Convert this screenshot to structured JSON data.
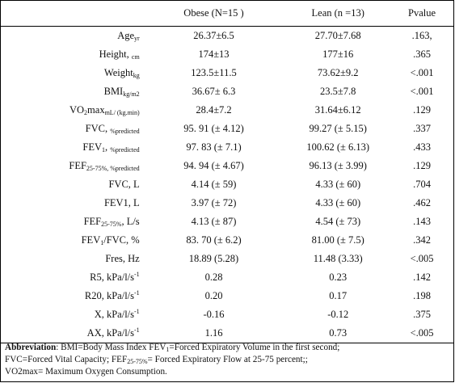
{
  "table": {
    "headers": [
      "",
      "Obese (N=15 )",
      "Lean (n =13)",
      "Pvalue"
    ],
    "rows": [
      {
        "label": {
          "main": "Age",
          "sub": "yr"
        },
        "obese": "26.37±6.5",
        "lean": "27.70±7.68",
        "p": ".163,"
      },
      {
        "label": {
          "main": "Height, ",
          "sub": "cm"
        },
        "obese": "174±13",
        "lean": "177±16",
        "p": ".365"
      },
      {
        "label": {
          "main": "Weight",
          "sub": "kg"
        },
        "obese": "123.5±11.5",
        "lean": "73.62±9.2",
        "p": "<.001"
      },
      {
        "label": {
          "main": "BMI",
          "sub": "kg/m2"
        },
        "obese": "36.67± 6.3",
        "lean": "23.5±7.8",
        "p": "<.001"
      },
      {
        "label": {
          "pre": "VO",
          "sub1": "2",
          "main": "max",
          "sub": "mL/ (kg.min)"
        },
        "obese": "28.4±7.2",
        "lean": "31.64±6.12",
        "p": ".129"
      },
      {
        "label": {
          "main": "FVC, ",
          "sub": "%predicted"
        },
        "obese": "95. 91 (± 4.12)",
        "lean": "99.27 (± 5.15)",
        "p": ".337"
      },
      {
        "label": {
          "pre": "FEV",
          "sub1": "1",
          "main": ", ",
          "sub": "%predicted"
        },
        "obese": "97. 83 (± 7.1)",
        "lean": "100.62 (± 6.13)",
        "p": ".433"
      },
      {
        "label": {
          "pre": "FEF",
          "sub1": "25-75%",
          "main": "",
          "sub": ", %predicted"
        },
        "obese": "94. 94 (± 4.67)",
        "lean": "96.13 (± 3.99)",
        "p": ".129"
      },
      {
        "label": {
          "main": "FVC, L"
        },
        "obese": "4.14 (± 59)",
        "lean": "4.33 (± 60)",
        "p": ".704"
      },
      {
        "label": {
          "main": "FEV1, L"
        },
        "obese": "3.97 (± 72)",
        "lean": "4.33 (± 60)",
        "p": ".462"
      },
      {
        "label": {
          "pre": "FEF",
          "sub1": "25-75%",
          "main": ", L/s"
        },
        "obese": "4.13 (± 87)",
        "lean": "4.54 (± 73)",
        "p": ".143"
      },
      {
        "label": {
          "pre": "FEV",
          "sub1": "1",
          "main": "/FVC, %"
        },
        "obese": "83. 70 (± 6.2)",
        "lean": "81.00 (± 7.5)",
        "p": ".342"
      },
      {
        "label": {
          "main": "Fres, Hz"
        },
        "obese": "18.89 (5.28)",
        "lean": "11.48 (3.33)",
        "p": "<.005"
      },
      {
        "label": {
          "main": "R5, kPa/l/s",
          "sup": "-1"
        },
        "obese": "0.28",
        "lean": "0.23",
        "p": ".142"
      },
      {
        "label": {
          "main": "R20, kPa/l/s",
          "sup": "-1"
        },
        "obese": "0.20",
        "lean": "0.17",
        "p": ".198"
      },
      {
        "label": {
          "main": "X, kPa/l/s",
          "sup": "-1"
        },
        "obese": "-0.16",
        "lean": "-0.12",
        "p": ".375"
      },
      {
        "label": {
          "main": "AX, kPa/l/s",
          "sup": "-1"
        },
        "obese": "1.16",
        "lean": "0.73",
        "p": "<.005"
      }
    ]
  },
  "footnote": {
    "bold_lead": "Abbreviation",
    "line1_a": ": BMI=Body Mass Index FEV",
    "line1_sub": "1",
    "line1_b": "=Forced Expiratory Volume in the first second;",
    "line2_a": "FVC=Forced Vital Capacity; FEF",
    "line2_sub": "25-75%",
    "line2_b": "= Forced Expiratory Flow at 25-75 percent;;",
    "line3": "VO2max= Maximum Oxygen Consumption."
  }
}
